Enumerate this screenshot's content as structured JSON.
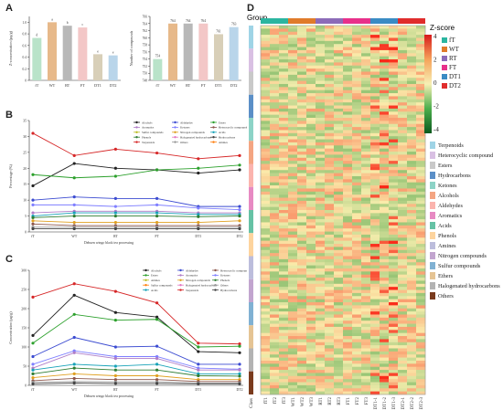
{
  "panels": {
    "A": "A",
    "B": "B",
    "C": "C",
    "D": "D"
  },
  "chart_data": [
    {
      "id": "A-left",
      "type": "bar",
      "ylabel": "Z-concentration (µg/g)",
      "categories": [
        "fT",
        "WT",
        "RT",
        "FT",
        "DT1",
        "DT2"
      ],
      "values": [
        0.73,
        1.0,
        0.94,
        0.91,
        0.45,
        0.43
      ],
      "letters": [
        "d",
        "a",
        "b",
        "c",
        "e",
        "e"
      ],
      "colors": [
        "#b9e3c9",
        "#e7b98a",
        "#b8b8b8",
        "#f3c7c7",
        "#d8cfb8",
        "#b9d5ea"
      ],
      "yticks": [
        "0",
        "0.2",
        "0.4",
        "0.6",
        "0.8",
        "1.0"
      ],
      "ylim": [
        0,
        1.1
      ]
    },
    {
      "id": "A-right",
      "type": "bar",
      "ylabel": "Number of compounds",
      "categories": [
        "fT",
        "WT",
        "RT",
        "FT",
        "DT1",
        "DT2"
      ],
      "values": [
        754,
        764,
        764,
        764,
        761,
        763
      ],
      "labels": [
        "754",
        "764",
        "764",
        "764",
        "761",
        "763"
      ],
      "colors": [
        "#b9e3c9",
        "#e7b98a",
        "#b8b8b8",
        "#f3c7c7",
        "#d8cfb8",
        "#b9d5ea"
      ],
      "yticks": [
        "748",
        "750",
        "752",
        "754",
        "756",
        "758",
        "760",
        "762",
        "764",
        "766"
      ],
      "ylim": [
        748,
        766
      ]
    },
    {
      "id": "B",
      "type": "line",
      "ylabel": "Percentage (%)",
      "xlabel": "Dehuen wingo black tea processing",
      "x": [
        "fT",
        "WT",
        "RT",
        "FT",
        "DT1",
        "DT2"
      ],
      "yticks": [
        "0",
        "5",
        "10",
        "15",
        "20",
        "25",
        "30",
        "35"
      ],
      "ylim": [
        0,
        35
      ],
      "series": [
        {
          "name": "Terpenoids",
          "color": "#d62728",
          "values": [
            31,
            24,
            26,
            24.8,
            23,
            24
          ]
        },
        {
          "name": "Alcohols",
          "color": "#222222",
          "values": [
            14.5,
            21.5,
            20,
            19.5,
            18.5,
            19.5
          ]
        },
        {
          "name": "Esters",
          "color": "#2ca02c",
          "values": [
            18,
            17,
            17.5,
            19.5,
            20,
            21
          ]
        },
        {
          "name": "Aldehydes",
          "color": "#3b4bd1",
          "values": [
            10,
            11,
            10.5,
            10.5,
            8,
            8
          ]
        },
        {
          "name": "Ketones",
          "color": "#7f7fff",
          "values": [
            8.5,
            8.5,
            8,
            8.5,
            7.5,
            7
          ]
        },
        {
          "name": "Aromatics",
          "color": "#b07dc7",
          "values": [
            6,
            6.5,
            6.5,
            6.5,
            6,
            6
          ]
        },
        {
          "name": "Acids",
          "color": "#17a2b8",
          "values": [
            5,
            6,
            6,
            6,
            5.5,
            5.5
          ]
        },
        {
          "name": "Phenols",
          "color": "#2e7d32",
          "values": [
            4.5,
            5,
            5,
            5,
            4.8,
            5
          ]
        },
        {
          "name": "Nitrogen compounds",
          "color": "#e0a020",
          "values": [
            3.5,
            3,
            3,
            3,
            3,
            3.5
          ]
        },
        {
          "name": "Heterocyclic compounds",
          "color": "#8c564b",
          "values": [
            2.5,
            2,
            2,
            2,
            2,
            2
          ]
        },
        {
          "name": "Others",
          "color": "#999999",
          "values": [
            1.5,
            1.5,
            1.5,
            1.5,
            1.5,
            1.5
          ]
        },
        {
          "name": "Hydrocarbons",
          "color": "#444444",
          "values": [
            1,
            1,
            1,
            1,
            1,
            1
          ]
        }
      ],
      "legend": [
        "Alcohols",
        "Aldehydes",
        "Esters",
        "Aromatics",
        "Ketones",
        "Heterocyclic compounds",
        "Sulfur compounds",
        "Nitrogen compounds",
        "Acids",
        "Phenols",
        "Halogenated hydrocarbons",
        "Hydrocarbons",
        "Terpenoids",
        "Others",
        "Amines"
      ]
    },
    {
      "id": "C",
      "type": "line",
      "ylabel": "Concentration (µg/g)",
      "xlabel": "Dehuen wingo black tea processing",
      "x": [
        "fT",
        "WT",
        "RT",
        "FT",
        "DT1",
        "DT2"
      ],
      "yticks": [
        "0",
        "50",
        "100",
        "150",
        "200",
        "250",
        "300"
      ],
      "ylim": [
        0,
        300
      ],
      "series": [
        {
          "name": "Terpenoids",
          "color": "#d62728",
          "values": [
            230,
            265,
            245,
            215,
            110,
            108
          ]
        },
        {
          "name": "Alcohols",
          "color": "#222222",
          "values": [
            130,
            235,
            190,
            178,
            88,
            85
          ]
        },
        {
          "name": "Esters",
          "color": "#2ca02c",
          "values": [
            110,
            185,
            170,
            172,
            100,
            102
          ]
        },
        {
          "name": "Aldehydes",
          "color": "#3b4bd1",
          "values": [
            75,
            125,
            100,
            102,
            55,
            55
          ]
        },
        {
          "name": "Ketones",
          "color": "#7f7fff",
          "values": [
            55,
            90,
            75,
            75,
            45,
            42
          ]
        },
        {
          "name": "Aromatics",
          "color": "#b07dc7",
          "values": [
            45,
            85,
            70,
            70,
            40,
            40
          ]
        },
        {
          "name": "Acids",
          "color": "#17a2b8",
          "values": [
            40,
            55,
            50,
            55,
            30,
            30
          ]
        },
        {
          "name": "Phenols",
          "color": "#2e7d32",
          "values": [
            30,
            45,
            40,
            40,
            25,
            24
          ]
        },
        {
          "name": "Nitrogen compounds",
          "color": "#e0a020",
          "values": [
            20,
            30,
            25,
            25,
            15,
            15
          ]
        },
        {
          "name": "Heterocyclic compounds",
          "color": "#8c564b",
          "values": [
            12,
            18,
            15,
            15,
            10,
            10
          ]
        },
        {
          "name": "Others",
          "color": "#999999",
          "values": [
            8,
            10,
            9,
            9,
            6,
            6
          ]
        },
        {
          "name": "Hydrocarbons",
          "color": "#444444",
          "values": [
            4,
            6,
            5,
            5,
            4,
            4
          ]
        }
      ],
      "legend": [
        "Alcohols",
        "Aldehydes",
        "Heterocyclic compounds",
        "Esters",
        "Aromatics",
        "Ketones",
        "Amines",
        "Nitrogen compounds",
        "Phenols",
        "Sulfur compounds",
        "Halogenated hydrocarbons",
        "Others",
        "Acids",
        "Terpenoids",
        "Hydrocarbons"
      ]
    },
    {
      "id": "D",
      "type": "heatmap",
      "title": "Group",
      "scale_title": "Z-score",
      "scale_ticks": [
        "4",
        "2",
        "0",
        "-2",
        "-4"
      ],
      "columns": [
        "fT1",
        "fT2",
        "fT3",
        "WT1",
        "WT2",
        "WT3",
        "RT1",
        "RT2",
        "RT3",
        "FT1",
        "FT2",
        "FT3",
        "DT1-1",
        "DT1-2",
        "DT1-3",
        "DT2-1",
        "DT2-2",
        "DT2-3"
      ],
      "class_label": "Class",
      "groups": [
        {
          "name": "fT",
          "color": "#2bb5a0"
        },
        {
          "name": "WT",
          "color": "#e07b2a"
        },
        {
          "name": "RT",
          "color": "#8c6bb8"
        },
        {
          "name": "FT",
          "color": "#e8308a"
        },
        {
          "name": "DT1",
          "color": "#3a8bc4"
        },
        {
          "name": "DT2",
          "color": "#e02c2c"
        }
      ],
      "classes": [
        {
          "name": "Terpenoids",
          "color": "#9fd4e6"
        },
        {
          "name": "Heterocyclic compound",
          "color": "#d9c0e3"
        },
        {
          "name": "Esters",
          "color": "#c9c9c9"
        },
        {
          "name": "Hydrocarbons",
          "color": "#5b8fc7"
        },
        {
          "name": "Ketones",
          "color": "#8dd3c7"
        },
        {
          "name": "Alcohols",
          "color": "#f4a582"
        },
        {
          "name": "Aldehydes",
          "color": "#fbb4ae"
        },
        {
          "name": "Aromatics",
          "color": "#e78ac3"
        },
        {
          "name": "Acids",
          "color": "#66c2a5"
        },
        {
          "name": "Phenols",
          "color": "#fdd49e"
        },
        {
          "name": "Amines",
          "color": "#bcbddc"
        },
        {
          "name": "Nitrogen compounds",
          "color": "#c2a5cf"
        },
        {
          "name": "Sulfur compounds",
          "color": "#80b1d3"
        },
        {
          "name": "Ethers",
          "color": "#e5c494"
        },
        {
          "name": "Halogenated hydrocarbons",
          "color": "#b3b3b3"
        },
        {
          "name": "Others",
          "color": "#7a3b1e"
        }
      ]
    }
  ]
}
